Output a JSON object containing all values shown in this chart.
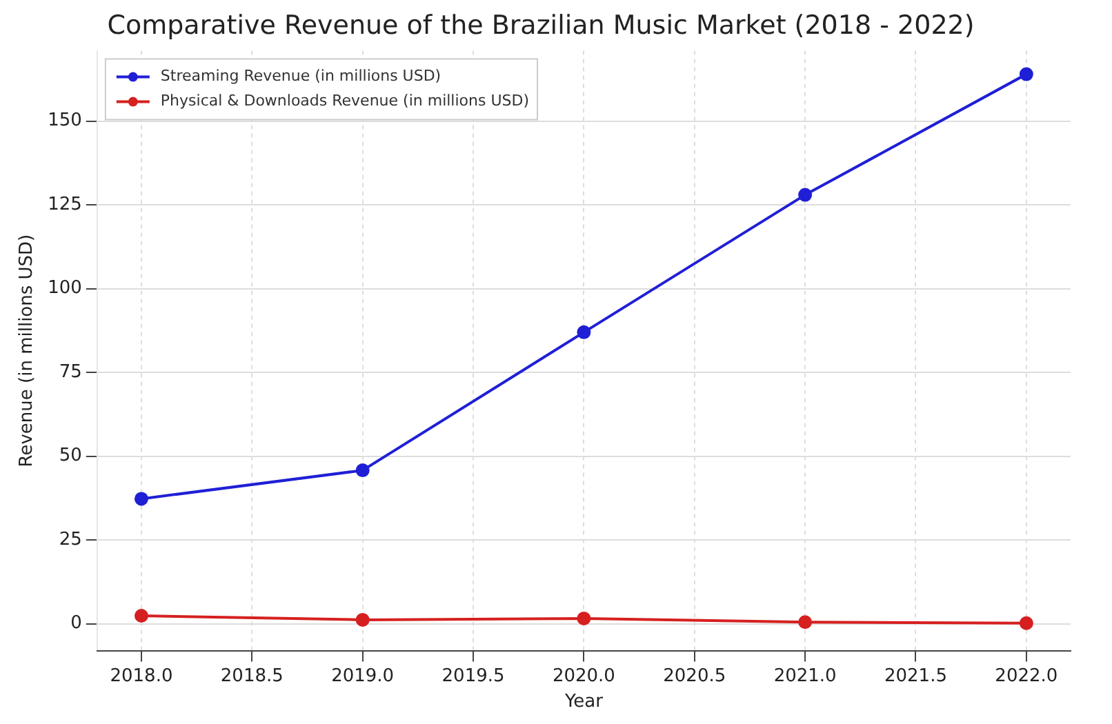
{
  "chart_data": {
    "type": "line",
    "title": "Comparative Revenue of the Brazilian Music Market (2018 - 2022)",
    "xlabel": "Year",
    "ylabel": "Revenue (in millions USD)",
    "x": [
      2018,
      2019,
      2020,
      2021,
      2022
    ],
    "series": [
      {
        "name": "Streaming Revenue (in millions USD)",
        "color": "#1f1fd6",
        "values": [
          37.3,
          45.8,
          87,
          128,
          164
        ]
      },
      {
        "name": "Physical & Downloads Revenue (in millions USD)",
        "color": "#d62020",
        "values": [
          2.4,
          1.2,
          1.6,
          0.5,
          0.2
        ]
      }
    ],
    "xlim": [
      2017.8,
      2022.2
    ],
    "ylim": [
      -8,
      171
    ],
    "xticks": [
      {
        "value": 2018,
        "label": "2018.0"
      },
      {
        "value": 2018.5,
        "label": "2018.5"
      },
      {
        "value": 2019,
        "label": "2019.0"
      },
      {
        "value": 2019.5,
        "label": "2019.5"
      },
      {
        "value": 2020,
        "label": "2020.0"
      },
      {
        "value": 2020.5,
        "label": "2020.5"
      },
      {
        "value": 2021,
        "label": "2021.0"
      },
      {
        "value": 2021.5,
        "label": "2021.5"
      },
      {
        "value": 2022,
        "label": "2022.0"
      }
    ],
    "yticks": [
      0,
      25,
      50,
      75,
      100,
      125,
      150
    ],
    "grid": true,
    "legend": "top left",
    "marker": "circle",
    "line_style": "solid"
  }
}
